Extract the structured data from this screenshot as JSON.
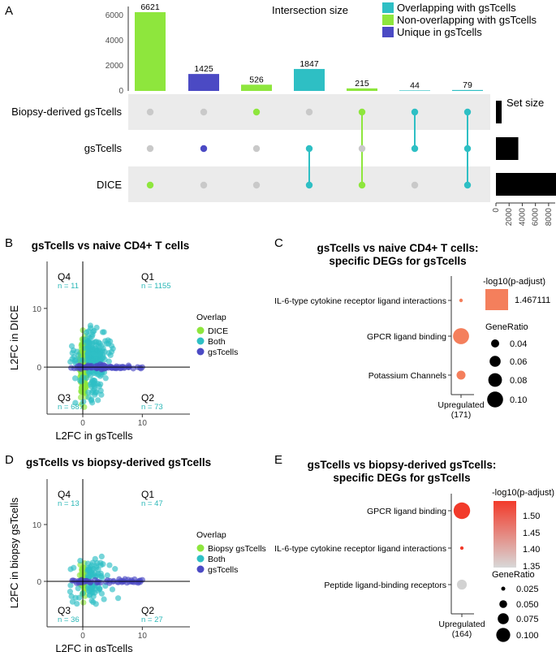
{
  "colors": {
    "teal": "#2ebfc4",
    "green": "#8ee63d",
    "purple": "#4b4ac4",
    "grey": "#c9c9c9",
    "band": "#ebebeb",
    "red": "#f23a2a",
    "salmon": "#f47f5c"
  },
  "panels": {
    "a": "A",
    "b": "B",
    "c": "C",
    "d": "D",
    "e": "E"
  },
  "upset": {
    "title": "Intersection size",
    "set_size_label": "Set size",
    "y_ticks": [
      "0",
      "2000",
      "4000",
      "6000"
    ],
    "sets": [
      "Biopsy-derived gsTcells",
      "gsTcells",
      "DICE"
    ],
    "legend": [
      {
        "label": "Overlapping with gsTcells",
        "color": "#2ebfc4"
      },
      {
        "label": "Non-overlapping with gsTcells",
        "color": "#8ee63d"
      },
      {
        "label": "Unique in gsTcells",
        "color": "#4b4ac4"
      }
    ],
    "set_size_ticks": [
      "0",
      "2000",
      "4000",
      "6000",
      "8000"
    ]
  },
  "chart_data": [
    {
      "type": "bar",
      "title": "Intersection size",
      "categories": [
        "DICE",
        "gsTcells",
        "Biopsy-derived gsTcells",
        "gsTcells & DICE",
        "Biopsy-derived gsTcells & DICE",
        "Biopsy-derived gsTcells & gsTcells",
        "All three"
      ],
      "values": [
        6621,
        1425,
        526,
        1847,
        215,
        44,
        79
      ],
      "labels": [
        "6621",
        "1425",
        "526",
        "1847",
        "215",
        "44",
        "79"
      ],
      "colors": [
        "#8ee63d",
        "#4b4ac4",
        "#8ee63d",
        "#2ebfc4",
        "#8ee63d",
        "#2ebfc4",
        "#2ebfc4"
      ],
      "membership": [
        [
          0,
          0,
          1
        ],
        [
          0,
          1,
          0
        ],
        [
          1,
          0,
          0
        ],
        [
          0,
          1,
          1
        ],
        [
          1,
          0,
          1
        ],
        [
          1,
          1,
          0
        ],
        [
          1,
          1,
          1
        ]
      ],
      "ylim": [
        0,
        6700
      ]
    },
    {
      "type": "bar",
      "title": "Set size",
      "categories": [
        "Biopsy-derived gsTcells",
        "gsTcells",
        "DICE"
      ],
      "values": [
        864,
        3395,
        9308
      ],
      "xlim": [
        0,
        9000
      ]
    },
    {
      "type": "scatter",
      "title": "gsTcells vs naive CD4+ T cells",
      "xlabel": "L2FC in gsTcells",
      "ylabel": "L2FC in DICE",
      "x_ticks": [
        0,
        10
      ],
      "y_ticks": [
        0,
        10
      ],
      "xlim": [
        -6,
        18
      ],
      "ylim": [
        -8,
        18
      ],
      "quadrants": [
        {
          "name": "Q4",
          "n": "n = 11"
        },
        {
          "name": "Q1",
          "n": "n = 1155"
        },
        {
          "name": "Q3",
          "n": "n = 687"
        },
        {
          "name": "Q2",
          "n": "n = 73"
        }
      ],
      "legend_title": "Overlap",
      "legend": [
        {
          "label": "DICE",
          "color": "#8ee63d"
        },
        {
          "label": "Both",
          "color": "#2ebfc4"
        },
        {
          "label": "gsTcells",
          "color": "#4b4ac4"
        }
      ]
    },
    {
      "type": "scatter",
      "title": "gsTcells vs biopsy-derived gsTcells",
      "xlabel": "L2FC in gsTcells",
      "ylabel": "L2FC in biopsy gsTcells",
      "x_ticks": [
        0,
        10
      ],
      "y_ticks": [
        0,
        10
      ],
      "xlim": [
        -6,
        18
      ],
      "ylim": [
        -8,
        18
      ],
      "quadrants": [
        {
          "name": "Q4",
          "n": "n = 13"
        },
        {
          "name": "Q1",
          "n": "n = 47"
        },
        {
          "name": "Q3",
          "n": "n = 36"
        },
        {
          "name": "Q2",
          "n": "n = 27"
        }
      ],
      "legend_title": "Overlap",
      "legend": [
        {
          "label": "Biopsy gsTcells",
          "color": "#8ee63d"
        },
        {
          "label": "Both",
          "color": "#2ebfc4"
        },
        {
          "label": "gsTcells",
          "color": "#4b4ac4"
        }
      ]
    },
    {
      "type": "scatter",
      "title_line1": "gsTcells vs naive CD4+ T cells:",
      "title_line2": "specific DEGs for gsTcells",
      "terms": [
        "IL-6-type cytokine receptor ligand interactions",
        "GPCR ligand binding",
        "Potassium Channels"
      ],
      "gene_ratio": [
        0.02,
        0.09,
        0.05
      ],
      "neg_log10_padj": [
        1.467111,
        1.467111,
        1.467111
      ],
      "x_label_line1": "Upregulated",
      "x_label_line2": "(171)",
      "color_title": "-log10(p-adjust)",
      "color_value_label": "1.467111",
      "size_title": "GeneRatio",
      "size_legend": [
        "0.04",
        "0.06",
        "0.08",
        "0.10"
      ]
    },
    {
      "type": "scatter",
      "title_line1": "gsTcells vs biopsy-derived gsTcells:",
      "title_line2": "specific DEGs for gsTcells",
      "terms": [
        "GPCR ligand binding",
        "IL-6-type cytokine receptor ligand interactions",
        "Peptide ligand-binding receptors"
      ],
      "gene_ratio": [
        0.11,
        0.012,
        0.06
      ],
      "neg_log10_padj": [
        1.55,
        1.55,
        1.3
      ],
      "x_label_line1": "Upregulated",
      "x_label_line2": "(164)",
      "color_title": "-log10(p-adjust)",
      "color_ticks": [
        "1.50",
        "1.45",
        "1.40",
        "1.35"
      ],
      "size_title": "GeneRatio",
      "size_legend": [
        "0.025",
        "0.050",
        "0.075",
        "0.100"
      ]
    }
  ]
}
